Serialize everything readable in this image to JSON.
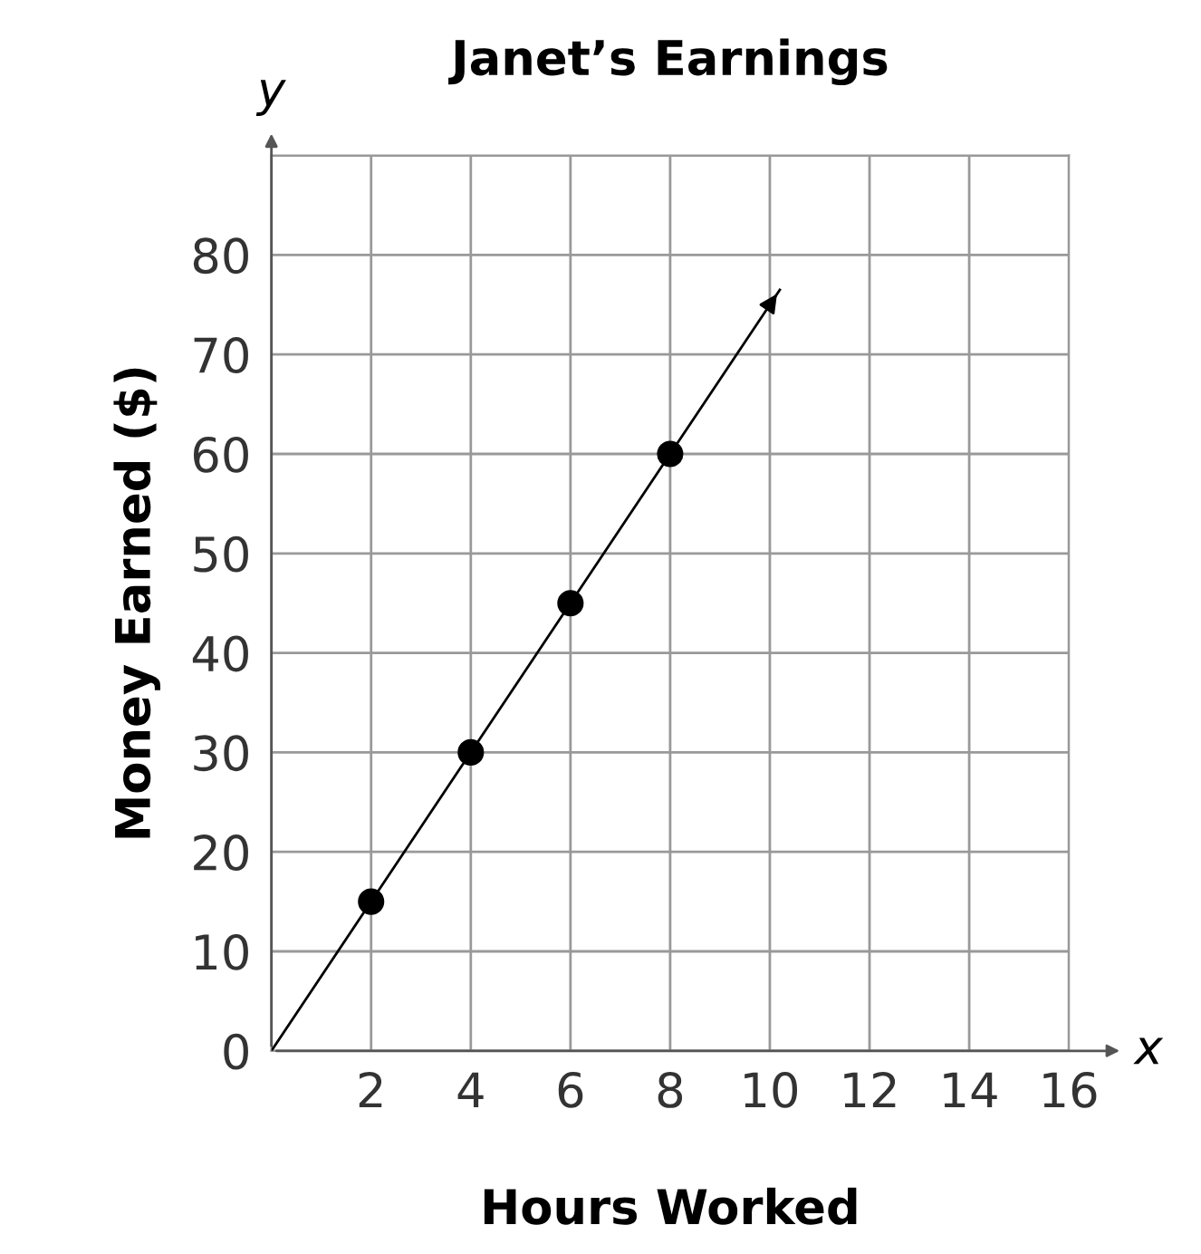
{
  "chart_data": {
    "type": "scatter",
    "title": "Janet’s Earnings",
    "xlabel": "Hours Worked",
    "ylabel": "Money Earned ($)",
    "annotations": [
      "x",
      "y"
    ],
    "series": [
      {
        "x": [
          2,
          4,
          6,
          8
        ],
        "values": [
          15,
          30,
          45,
          60
        ],
        "color": "#000000",
        "marker": "circle"
      },
      {
        "type": "line",
        "x": [
          0,
          10.2
        ],
        "values": [
          0,
          76.5
        ],
        "color": "#000000",
        "marker": "none"
      }
    ],
    "xlim": [
      0,
      16
    ],
    "ylim": [
      0,
      90
    ],
    "xticks": [
      {
        "value": 0,
        "label": null
      },
      2,
      4,
      6,
      8,
      10,
      12,
      14,
      16
    ],
    "yticks": [
      0,
      10,
      20,
      30,
      40,
      50,
      60,
      70,
      80,
      {
        "value": 90,
        "label": null
      }
    ],
    "grid": true,
    "legend": false
  }
}
